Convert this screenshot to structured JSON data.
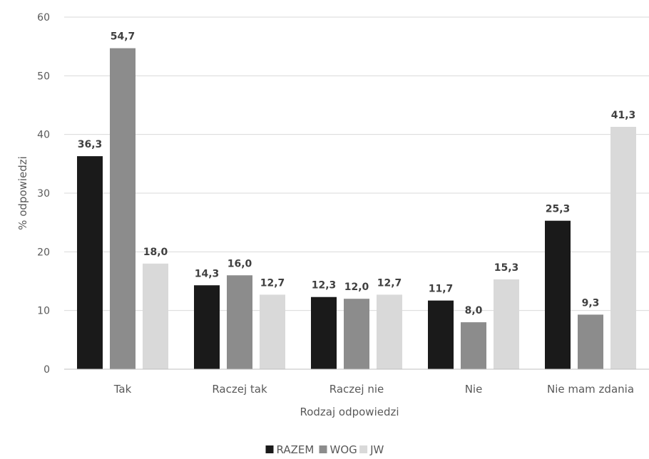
{
  "chart_data": {
    "type": "bar",
    "title": "",
    "xlabel": "Rodzaj odpowiedzi",
    "ylabel": "% odpowiedzi",
    "ylim": [
      0,
      60
    ],
    "yticks": [
      0,
      10,
      20,
      30,
      40,
      50,
      60
    ],
    "grid": true,
    "legend_position": "bottom",
    "categories": [
      "Tak",
      "Raczej tak",
      "Raczej nie",
      "Nie",
      "Nie mam zdania"
    ],
    "series": [
      {
        "name": "RAZEM",
        "color": "#1a1a1a",
        "values": [
          36.3,
          14.3,
          12.3,
          11.7,
          25.3
        ],
        "labels": [
          "36,3",
          "14,3",
          "12,3",
          "11,7",
          "25,3"
        ]
      },
      {
        "name": "WOG",
        "color": "#8c8c8c",
        "values": [
          54.7,
          16.0,
          12.0,
          8.0,
          9.3
        ],
        "labels": [
          "54,7",
          "16,0",
          "12,0",
          "8,0",
          "9,3"
        ]
      },
      {
        "name": "JW",
        "color": "#d9d9d9",
        "values": [
          18.0,
          12.7,
          12.7,
          15.3,
          41.3
        ],
        "labels": [
          "18,0",
          "12,7",
          "12,7",
          "15,3",
          "41,3"
        ]
      }
    ]
  }
}
